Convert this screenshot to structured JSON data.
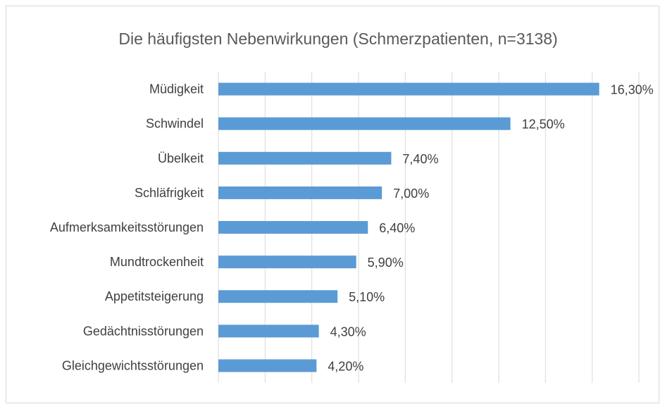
{
  "chart_data": {
    "type": "bar",
    "orientation": "horizontal",
    "title": "Die häufigsten Nebenwirkungen (Schmerzpatienten, n=3138)",
    "categories": [
      "Müdigkeit",
      "Schwindel",
      "Übelkeit",
      "Schläfrigkeit",
      "Aufmerksamkeitsstörungen",
      "Mundtrockenheit",
      "Appetitsteigerung",
      "Gedächtnisstörungen",
      "Gleichgewichtsstörungen"
    ],
    "values": [
      16.3,
      12.5,
      7.4,
      7.0,
      6.4,
      5.9,
      5.1,
      4.3,
      4.2
    ],
    "value_labels": [
      "16,30%",
      "12,50%",
      "7,40%",
      "7,00%",
      "6,40%",
      "5,90%",
      "5,10%",
      "4,30%",
      "4,20%"
    ],
    "xlabel": "",
    "ylabel": "",
    "xlim": [
      0,
      18
    ],
    "grid": true,
    "legend": "none",
    "bar_color": "#5b9bd5",
    "grid_color": "#d9d9d9",
    "text_color": "#404040",
    "title_color": "#595959"
  }
}
